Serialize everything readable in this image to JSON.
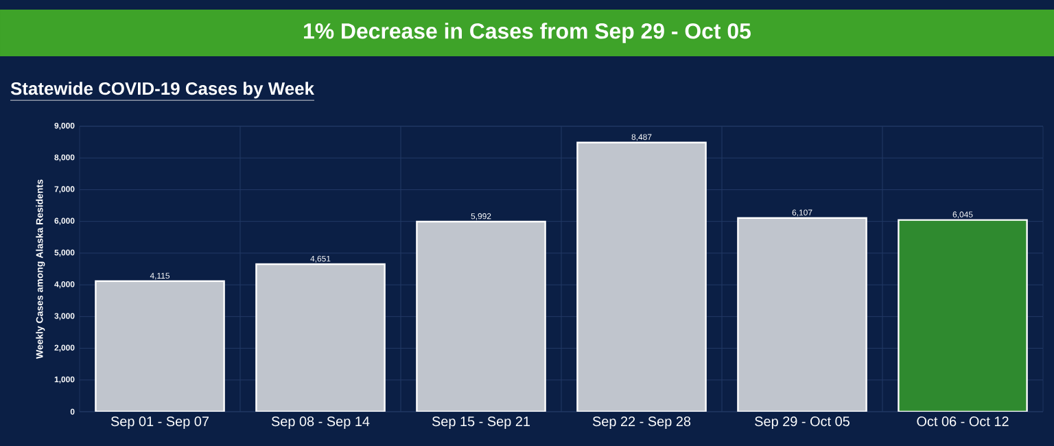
{
  "chart_data": {
    "type": "bar",
    "title": "1% Decrease in Cases from Sep 29 - Oct 05",
    "subtitle": "Statewide COVID-19 Cases by Week",
    "ylabel": "Weekly Cases among Alaska Residents",
    "categories": [
      "Sep 01 - Sep 07",
      "Sep 08 - Sep 14",
      "Sep 15 - Sep 21",
      "Sep 22 - Sep 28",
      "Sep 29 - Oct 05",
      "Oct 06 - Oct 12"
    ],
    "values": [
      4115,
      4651,
      5992,
      8487,
      6107,
      6045
    ],
    "value_labels": [
      "4,115",
      "4,651",
      "5,992",
      "8,487",
      "6,107",
      "6,045"
    ],
    "colors": [
      "#c0c5cd",
      "#c0c5cd",
      "#c0c5cd",
      "#c0c5cd",
      "#c0c5cd",
      "#2f8a2f"
    ],
    "ylim": [
      0,
      9000
    ],
    "yticks": [
      {
        "value": 0,
        "label": "0"
      },
      {
        "value": 1000,
        "label": "1,000"
      },
      {
        "value": 2000,
        "label": "2,000"
      },
      {
        "value": 3000,
        "label": "3,000"
      },
      {
        "value": 4000,
        "label": "4,000"
      },
      {
        "value": 5000,
        "label": "5,000"
      },
      {
        "value": 6000,
        "label": "6,000"
      },
      {
        "value": 7000,
        "label": "7,000"
      },
      {
        "value": 8000,
        "label": "8,000"
      },
      {
        "value": 9000,
        "label": "9,000"
      }
    ],
    "grid": true
  }
}
